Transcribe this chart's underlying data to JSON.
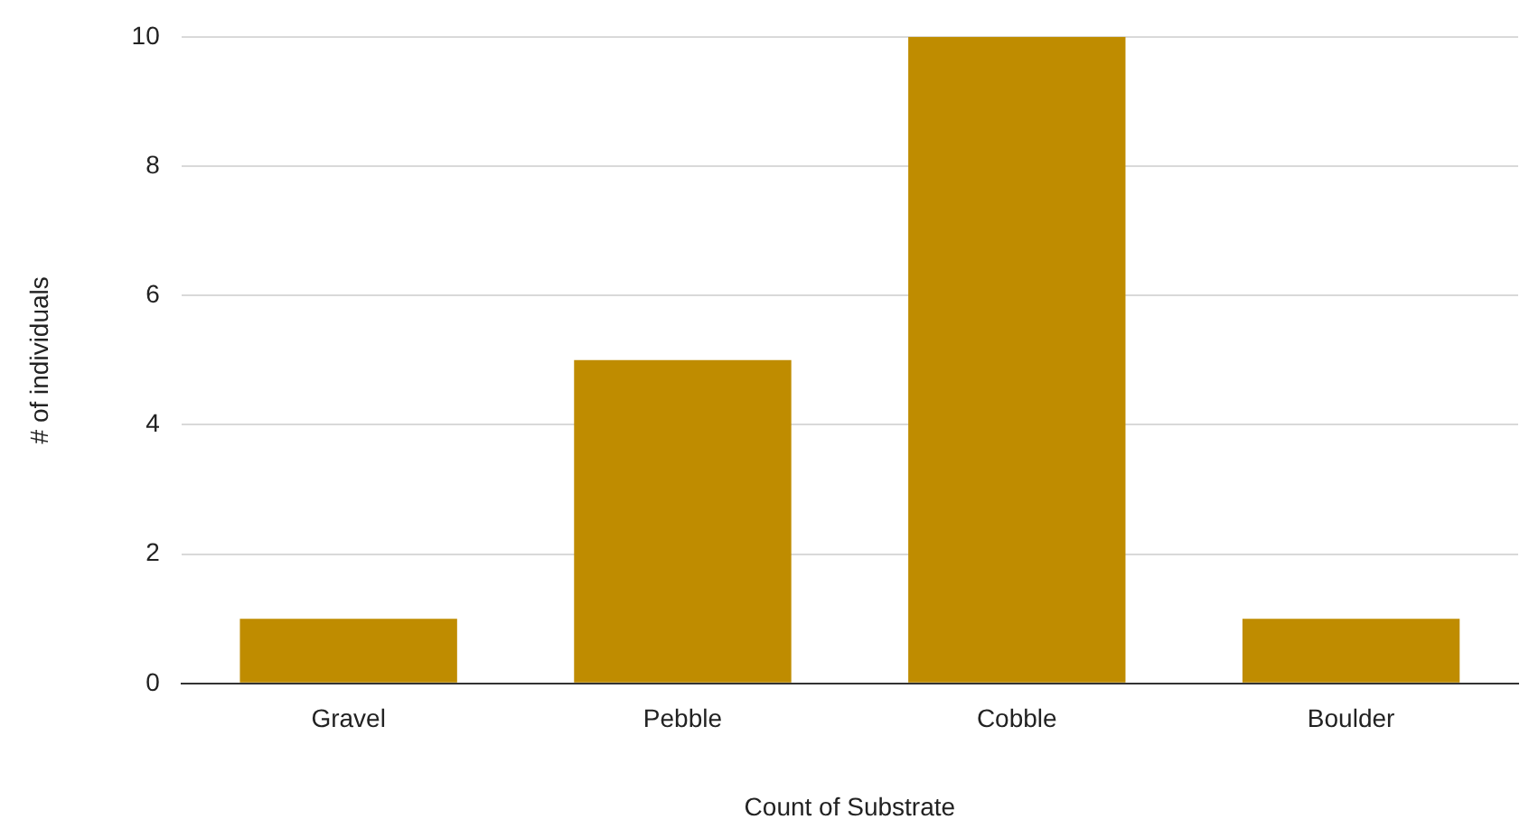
{
  "chart_data": {
    "type": "bar",
    "xlabel": "Count of Substrate",
    "ylabel": "# of individuals",
    "categories": [
      "Gravel",
      "Pebble",
      "Cobble",
      "Boulder"
    ],
    "values": [
      1,
      5,
      10,
      1
    ],
    "color": "#bf8c00",
    "ylim": [
      0,
      10
    ],
    "yticks": [
      0,
      2,
      4,
      6,
      8,
      10
    ],
    "grid": "y"
  }
}
